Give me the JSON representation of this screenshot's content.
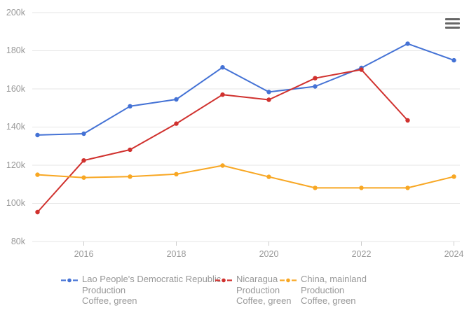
{
  "chart_data": {
    "type": "line",
    "title": "",
    "x": [
      2015,
      2016,
      2017,
      2018,
      2019,
      2020,
      2021,
      2022,
      2023,
      2024
    ],
    "xticks": [
      {
        "v": 2016,
        "label": "2016"
      },
      {
        "v": 2018,
        "label": "2018"
      },
      {
        "v": 2020,
        "label": "2020"
      },
      {
        "v": 2022,
        "label": "2022"
      },
      {
        "v": 2024,
        "label": "2024"
      }
    ],
    "yticks": [
      {
        "v": 80,
        "label": "80k"
      },
      {
        "v": 100,
        "label": "100k"
      },
      {
        "v": 120,
        "label": "120k"
      },
      {
        "v": 140,
        "label": "140k"
      },
      {
        "v": 160,
        "label": "160k"
      },
      {
        "v": 180,
        "label": "180k"
      },
      {
        "v": 200,
        "label": "200k"
      }
    ],
    "ylim": [
      80,
      200
    ],
    "y_unit_suffix": "k",
    "grid": "horizontal",
    "legend_position": "bottom",
    "series": [
      {
        "name": "Lao People's Democratic Republic",
        "element": "Production",
        "item": "Coffee, green",
        "color": "#4472d5",
        "values_k": [
          135.8,
          136.5,
          150.9,
          154.5,
          171.3,
          158.4,
          161.3,
          171.0,
          183.7,
          175.0
        ]
      },
      {
        "name": "Nicaragua",
        "element": "Production",
        "item": "Coffee, green",
        "color": "#d0312e",
        "values_k": [
          95.4,
          122.5,
          128.1,
          141.8,
          157.0,
          154.3,
          165.6,
          170.1,
          143.5,
          null
        ]
      },
      {
        "name": "China, mainland",
        "element": "Production",
        "item": "Coffee, green",
        "color": "#f8a723",
        "values_k": [
          115.0,
          113.5,
          114.0,
          115.3,
          119.8,
          113.9,
          108.1,
          108.1,
          108.1,
          114.0
        ]
      }
    ],
    "colors": {
      "grid": "#e6e6e6",
      "tick": "#cccccc",
      "axis_label": "#999999",
      "legend_text": "#989898",
      "menu_icon": "#666666",
      "background": "#ffffff"
    }
  },
  "toolbar": {
    "menu_button_name": "chart context menu"
  }
}
